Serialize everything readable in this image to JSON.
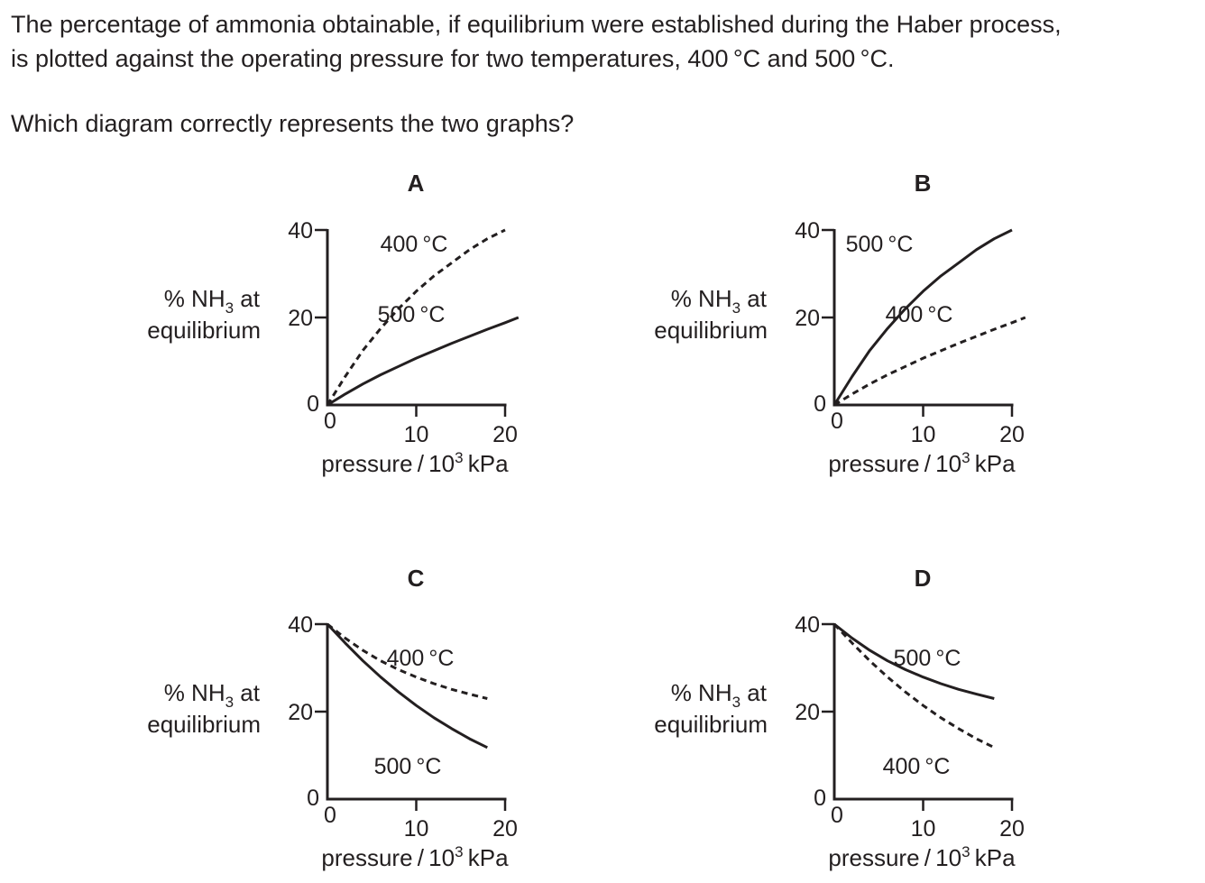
{
  "question": {
    "line1": "The percentage of ammonia obtainable, if equilibrium were established during the Haber process,",
    "line2": "is plotted against the operating pressure for two temperatures, 400 °C and 500 °C.",
    "prompt": "Which diagram correctly represents the two graphs?"
  },
  "axis_text": {
    "y_label_main": "% NH",
    "y_label_sub": "3",
    "y_label_tail": " at",
    "y_label_line2": "equilibrium",
    "x_label_main": "pressure / 10",
    "x_label_sup": "3",
    "x_label_tail": " kPa"
  },
  "colors": {
    "ink": "#231f20",
    "background": "#ffffff"
  },
  "chart_data": [
    {
      "type": "line",
      "label": "A",
      "xlim": [
        0,
        20
      ],
      "ylim": [
        0,
        40
      ],
      "x_ticks": [
        "0",
        "10",
        "20"
      ],
      "y_ticks": [
        "0",
        "20",
        "40"
      ],
      "series": [
        {
          "name": "400 °C",
          "style": "dashed",
          "x": [
            0,
            2,
            4,
            6,
            8,
            10,
            12,
            14,
            16,
            18,
            20
          ],
          "y": [
            0,
            6.5,
            12.5,
            17.5,
            22,
            26,
            29.5,
            32.5,
            35.5,
            38,
            40
          ]
        },
        {
          "name": "500 °C",
          "style": "solid",
          "x": [
            0,
            2,
            4,
            6,
            8,
            10,
            12,
            14,
            16,
            18,
            20,
            21.5
          ],
          "y": [
            0,
            2.5,
            4.8,
            6.9,
            8.8,
            10.7,
            12.4,
            14.1,
            15.7,
            17.3,
            18.8,
            20
          ]
        }
      ]
    },
    {
      "type": "line",
      "label": "B",
      "xlim": [
        0,
        20
      ],
      "ylim": [
        0,
        40
      ],
      "x_ticks": [
        "0",
        "10",
        "20"
      ],
      "y_ticks": [
        "0",
        "20",
        "40"
      ],
      "series": [
        {
          "name": "500 °C",
          "style": "solid",
          "x": [
            0,
            2,
            4,
            6,
            8,
            10,
            12,
            14,
            16,
            18,
            20
          ],
          "y": [
            0,
            6.5,
            12.5,
            17.5,
            22,
            26,
            29.5,
            32.5,
            35.5,
            38,
            40
          ]
        },
        {
          "name": "400 °C",
          "style": "dashed",
          "x": [
            0,
            2,
            4,
            6,
            8,
            10,
            12,
            14,
            16,
            18,
            20,
            21.5
          ],
          "y": [
            0,
            2.5,
            4.8,
            6.9,
            8.8,
            10.7,
            12.4,
            14.1,
            15.7,
            17.3,
            18.8,
            20
          ]
        }
      ]
    },
    {
      "type": "line",
      "label": "C",
      "xlim": [
        0,
        20
      ],
      "ylim": [
        0,
        40
      ],
      "x_ticks": [
        "0",
        "10",
        "20"
      ],
      "y_ticks": [
        "0",
        "20",
        "40"
      ],
      "series": [
        {
          "name": "400 °C",
          "style": "dashed",
          "x": [
            0,
            2,
            4,
            6,
            8,
            10,
            12,
            14,
            16,
            18
          ],
          "y": [
            40,
            36.8,
            34,
            31.6,
            29.6,
            27.9,
            26.4,
            25.1,
            24,
            23
          ]
        },
        {
          "name": "500 °C",
          "style": "solid",
          "x": [
            0,
            2,
            4,
            6,
            8,
            10,
            12,
            14,
            16,
            18
          ],
          "y": [
            40,
            35.7,
            31.6,
            27.9,
            24.5,
            21.4,
            18.6,
            16.1,
            13.8,
            11.8
          ]
        }
      ]
    },
    {
      "type": "line",
      "label": "D",
      "xlim": [
        0,
        20
      ],
      "ylim": [
        0,
        40
      ],
      "x_ticks": [
        "0",
        "10",
        "20"
      ],
      "y_ticks": [
        "0",
        "20",
        "40"
      ],
      "series": [
        {
          "name": "500 °C",
          "style": "solid",
          "x": [
            0,
            2,
            4,
            6,
            8,
            10,
            12,
            14,
            16,
            18
          ],
          "y": [
            40,
            36.8,
            34,
            31.6,
            29.6,
            27.9,
            26.4,
            25.1,
            24,
            23
          ]
        },
        {
          "name": "400 °C",
          "style": "dashed",
          "x": [
            0,
            2,
            4,
            6,
            8,
            10,
            12,
            14,
            16,
            18
          ],
          "y": [
            40,
            35.7,
            31.6,
            27.9,
            24.5,
            21.4,
            18.6,
            16.1,
            13.8,
            11.8
          ]
        }
      ]
    }
  ]
}
